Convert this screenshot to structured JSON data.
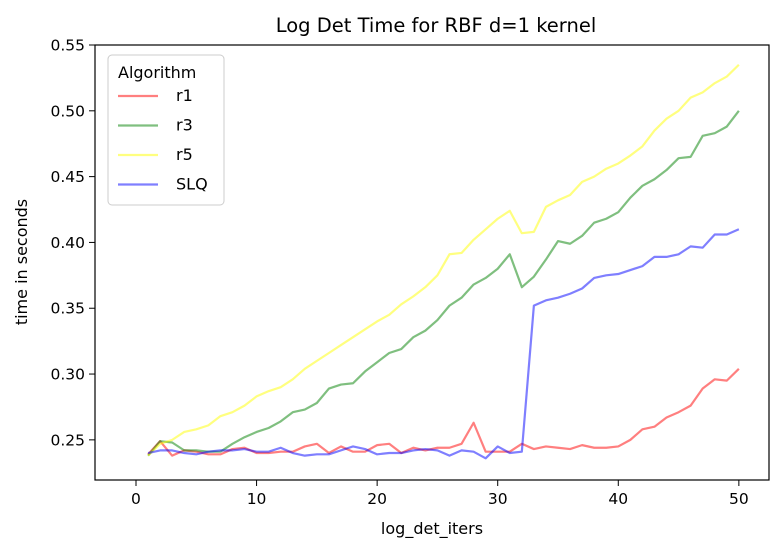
{
  "chart_data": {
    "type": "line",
    "title": "Log Det Time for RBF d=1 kernel",
    "xlabel": "log_det_iters",
    "ylabel": "time in seconds",
    "xlim": [
      -3.4,
      52.5
    ],
    "ylim": [
      0.2195,
      0.55
    ],
    "xticks": [
      0,
      10,
      20,
      30,
      40,
      50
    ],
    "yticks": [
      0.25,
      0.3,
      0.35,
      0.4,
      0.45,
      0.5,
      0.55
    ],
    "xtick_labels": [
      "0",
      "10",
      "20",
      "30",
      "40",
      "50"
    ],
    "ytick_labels": [
      "0.25",
      "0.30",
      "0.35",
      "0.40",
      "0.45",
      "0.50",
      "0.55"
    ],
    "grid": false,
    "legend": {
      "title": "Algorithm",
      "placement": "top-left"
    },
    "x": [
      1,
      2,
      3,
      4,
      5,
      6,
      7,
      8,
      9,
      10,
      11,
      12,
      13,
      14,
      15,
      16,
      17,
      18,
      19,
      20,
      21,
      22,
      23,
      24,
      25,
      26,
      27,
      28,
      29,
      30,
      31,
      32,
      33,
      34,
      35,
      36,
      37,
      38,
      39,
      40,
      41,
      42,
      43,
      44,
      45,
      46,
      47,
      48,
      49,
      50
    ],
    "series": [
      {
        "name": "r1",
        "color": "#ff0000",
        "values": [
          0.239,
          0.249,
          0.238,
          0.242,
          0.241,
          0.239,
          0.239,
          0.243,
          0.244,
          0.24,
          0.24,
          0.241,
          0.241,
          0.245,
          0.247,
          0.24,
          0.245,
          0.241,
          0.241,
          0.246,
          0.247,
          0.24,
          0.244,
          0.242,
          0.244,
          0.244,
          0.247,
          0.263,
          0.241,
          0.241,
          0.241,
          0.247,
          0.243,
          0.245,
          0.244,
          0.243,
          0.246,
          0.244,
          0.244,
          0.245,
          0.25,
          0.258,
          0.26,
          0.267,
          0.271,
          0.276,
          0.289,
          0.296,
          0.295,
          0.304
        ]
      },
      {
        "name": "r3",
        "color": "#008000",
        "values": [
          0.238,
          0.249,
          0.248,
          0.242,
          0.242,
          0.241,
          0.241,
          0.247,
          0.252,
          0.256,
          0.259,
          0.264,
          0.271,
          0.273,
          0.278,
          0.289,
          0.292,
          0.293,
          0.302,
          0.309,
          0.316,
          0.319,
          0.328,
          0.333,
          0.341,
          0.352,
          0.358,
          0.368,
          0.373,
          0.38,
          0.391,
          0.366,
          0.374,
          0.387,
          0.401,
          0.399,
          0.405,
          0.415,
          0.418,
          0.423,
          0.434,
          0.443,
          0.448,
          0.455,
          0.464,
          0.465,
          0.481,
          0.483,
          0.488,
          0.5
        ]
      },
      {
        "name": "r5",
        "color": "#ffff00",
        "values": [
          0.238,
          0.247,
          0.25,
          0.256,
          0.258,
          0.261,
          0.268,
          0.271,
          0.276,
          0.283,
          0.287,
          0.29,
          0.296,
          0.304,
          0.31,
          0.316,
          0.322,
          0.328,
          0.334,
          0.34,
          0.345,
          0.353,
          0.359,
          0.366,
          0.375,
          0.391,
          0.392,
          0.402,
          0.41,
          0.418,
          0.424,
          0.407,
          0.408,
          0.427,
          0.432,
          0.436,
          0.446,
          0.45,
          0.456,
          0.46,
          0.466,
          0.473,
          0.485,
          0.494,
          0.5,
          0.51,
          0.514,
          0.521,
          0.526,
          0.535
        ]
      },
      {
        "name": "SLQ",
        "color": "#0000ff",
        "values": [
          0.24,
          0.242,
          0.242,
          0.24,
          0.239,
          0.241,
          0.242,
          0.242,
          0.243,
          0.241,
          0.241,
          0.244,
          0.24,
          0.238,
          0.239,
          0.239,
          0.242,
          0.245,
          0.243,
          0.239,
          0.24,
          0.24,
          0.242,
          0.243,
          0.242,
          0.238,
          0.242,
          0.241,
          0.236,
          0.245,
          0.24,
          0.241,
          0.352,
          0.356,
          0.358,
          0.361,
          0.365,
          0.373,
          0.375,
          0.376,
          0.379,
          0.382,
          0.389,
          0.389,
          0.391,
          0.397,
          0.396,
          0.406,
          0.406,
          0.41
        ]
      }
    ]
  }
}
